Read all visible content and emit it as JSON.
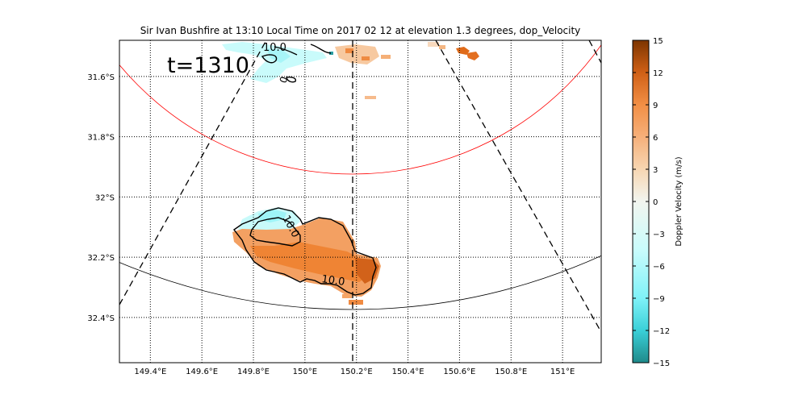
{
  "chart_data": {
    "type": "heatmap",
    "title": "Sir Ivan Bushfire at 13:10 Local Time on 2017 02 12 at elevation 1.3 degrees, dop_Velocity",
    "annotation": "t=1310",
    "x_ticks": [
      "149.4°E",
      "149.6°E",
      "149.8°E",
      "150°E",
      "150.2°E",
      "150.4°E",
      "150.6°E",
      "150.8°E",
      "151°E"
    ],
    "x_tick_values": [
      149.4,
      149.6,
      149.8,
      150.0,
      150.2,
      150.4,
      150.6,
      150.8,
      151.0
    ],
    "y_ticks": [
      "31.6°S",
      "31.8°S",
      "32°S",
      "32.2°S",
      "32.4°S"
    ],
    "y_tick_values": [
      -31.6,
      -31.8,
      -32.0,
      -32.2,
      -32.4
    ],
    "xlim": [
      149.28,
      151.15
    ],
    "ylim": [
      -32.55,
      -31.48
    ],
    "grid": true,
    "contour_labels": [
      "10.0",
      "10.0",
      "10.0",
      "0"
    ],
    "colorbar": {
      "label": "Doppler Velocity (m/s)",
      "ticks": [
        "15",
        "12",
        "9",
        "6",
        "3",
        "0",
        "−3",
        "−6",
        "−9",
        "−12",
        "−15"
      ],
      "tick_values": [
        15,
        12,
        9,
        6,
        3,
        0,
        -3,
        -6,
        -9,
        -12,
        -15
      ],
      "range": [
        -15,
        15
      ],
      "colors": [
        "#1f8a8a",
        "#3ad0d8",
        "#7ff2f8",
        "#c9fcfc",
        "#f2f5ef",
        "#f7d6b2",
        "#f6b07a",
        "#f28f45",
        "#e3701f",
        "#b3530d",
        "#7d3500"
      ]
    },
    "range_rings": [
      {
        "color": "#ff0000"
      },
      {
        "color": "#000000"
      }
    ]
  }
}
